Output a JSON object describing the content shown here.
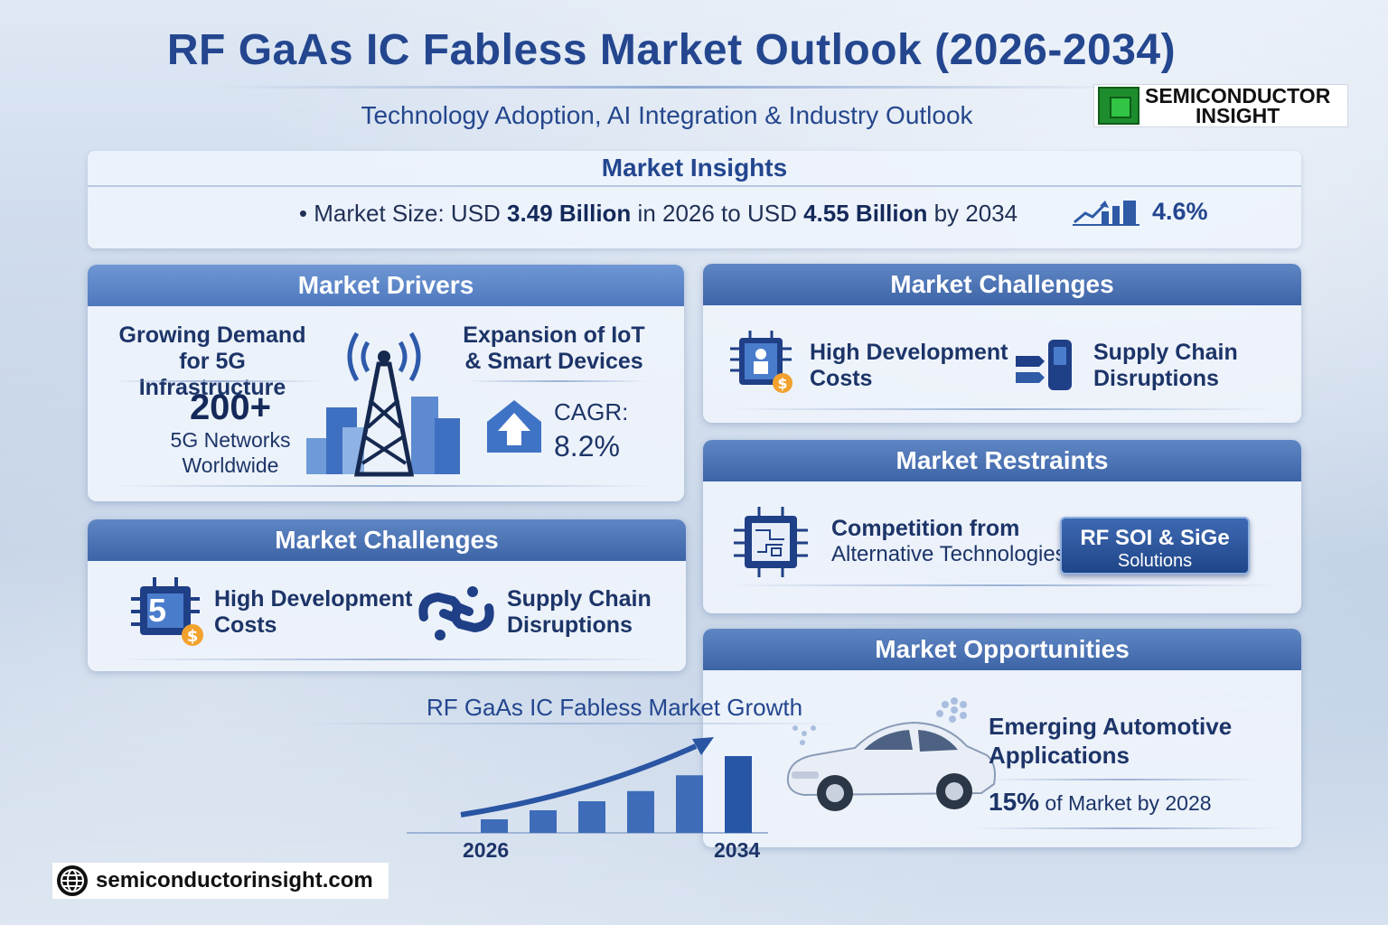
{
  "header": {
    "title": "RF GaAs IC Fabless Market Outlook (2026-2034)",
    "subtitle": "Technology Adoption, AI Integration & Industry Outlook",
    "logo_line1": "SEMICONDUCTOR",
    "logo_line2": "INSIGHT"
  },
  "insights": {
    "heading": "Market Insights",
    "prefix": "• Market Size: USD ",
    "value_2026": "3.49 Billion",
    "mid": " in 2026 to USD ",
    "value_2034": "4.55 Billion",
    "suffix": " by 2034",
    "cagr": "4.6%"
  },
  "drivers": {
    "heading": "Market Drivers",
    "item1_line1": "Growing Demand",
    "item1_line2": "for 5G Infrastructure",
    "stat_value": "200+",
    "stat_line1": "5G Networks",
    "stat_line2": "Worldwide",
    "item2_line1": "Expansion of IoT",
    "item2_line2": "& Smart Devices",
    "cagr_label": "CAGR:",
    "cagr_value": "8.2%"
  },
  "challenges_left": {
    "heading": "Market Challenges",
    "item1_line1": "High Development",
    "item1_line2": "Costs",
    "item2_line1": "Supply Chain",
    "item2_line2": "Disruptions",
    "icon_digit": "5"
  },
  "challenges_right": {
    "heading": "Market Challenges",
    "item1_line1": "High Development",
    "item1_line2": "Costs",
    "item2_line1": "Supply Chain",
    "item2_line2": "Disruptions"
  },
  "restraints": {
    "heading": "Market Restraints",
    "item_line1": "Competition from",
    "item_line2": "Alternative Technologies",
    "button_line1": "RF SOI & SiGe",
    "button_line2": "Solutions"
  },
  "opportunities": {
    "heading": "Market Opportunities",
    "item_line1": "Emerging Automotive",
    "item_line2": "Applications",
    "stat_value": "15%",
    "stat_text": " of Market by 2028"
  },
  "growth": {
    "title": "RF GaAs IC Fabless Market Growth",
    "year_start": "2026",
    "year_end": "2034"
  },
  "chart_data": {
    "type": "bar",
    "title": "RF GaAs IC Fabless Market Growth",
    "categories": [
      "2026",
      "",
      "",
      "",
      "",
      "2034"
    ],
    "values": [
      12,
      20,
      28,
      37,
      51,
      68
    ],
    "ylim": [
      0,
      80
    ]
  },
  "footer": {
    "url": "semiconductorinsight.com"
  },
  "colors": {
    "primary": "#23468f",
    "header_blue": "#3d64a6",
    "accent_orange": "#f2a12e"
  }
}
